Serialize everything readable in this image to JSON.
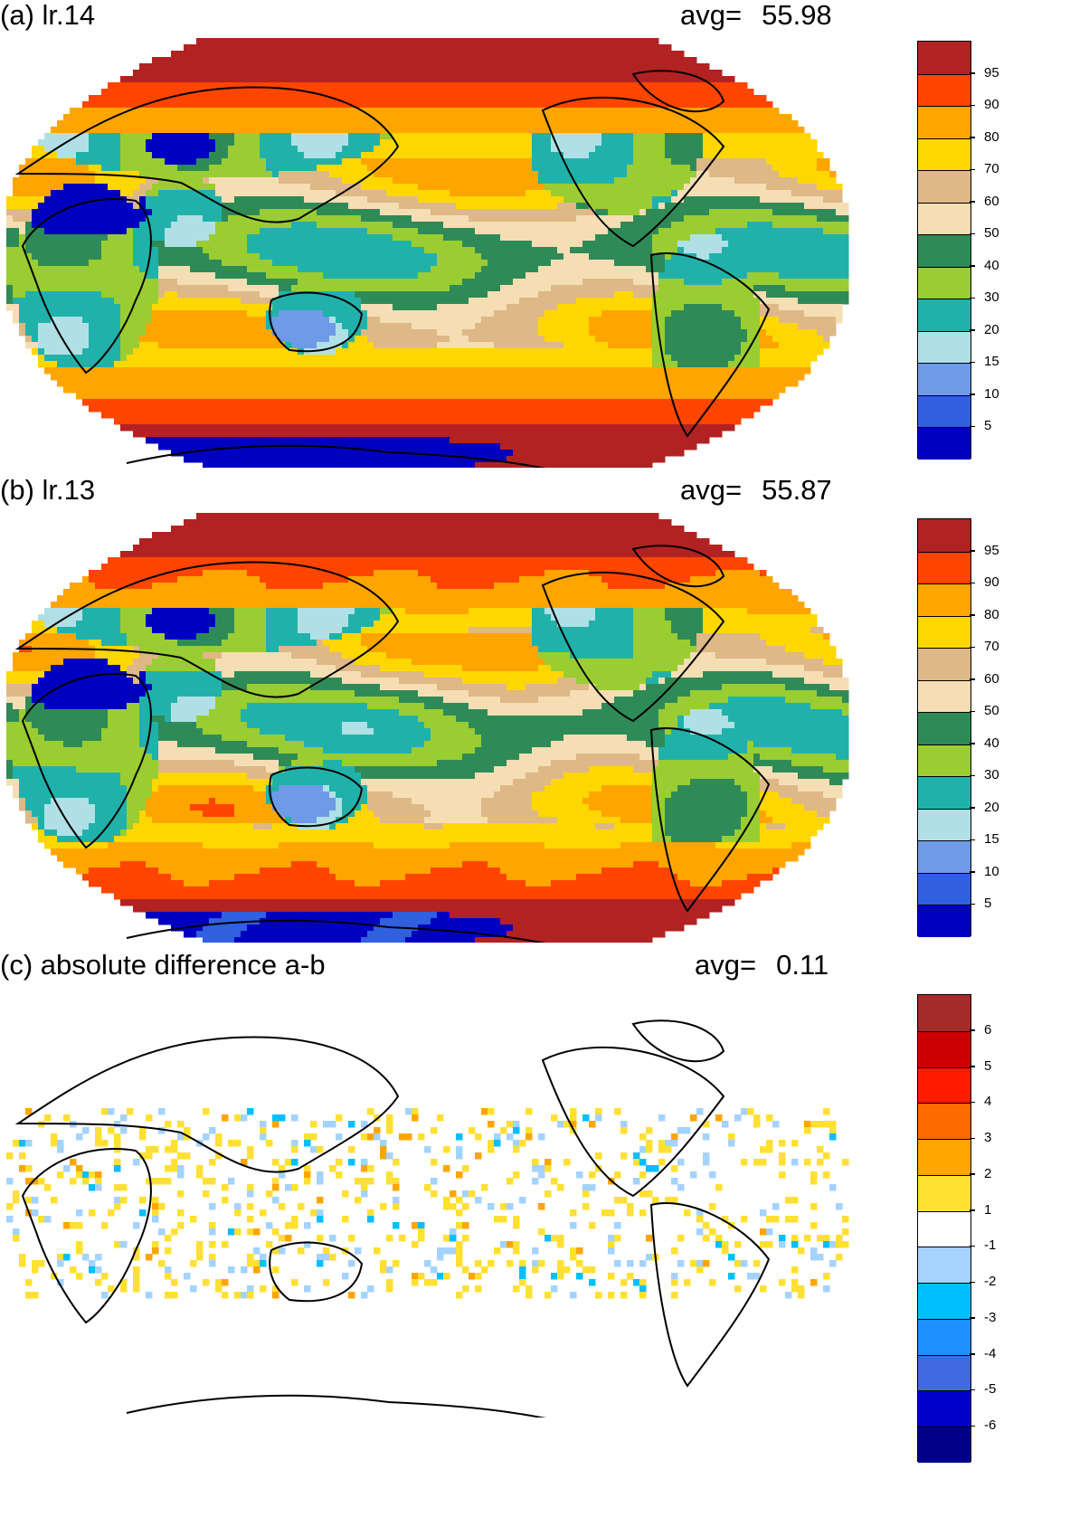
{
  "panels": [
    {
      "title": "(a) lr.14",
      "avg_label": "avg=",
      "avg_value": "55.98",
      "field": "a",
      "colorbar": {
        "colors": [
          "#0000c0",
          "#3060e0",
          "#6f9ae8",
          "#b0e0e6",
          "#20b2aa",
          "#9acd32",
          "#2e8b57",
          "#f5deb3",
          "#deb887",
          "#ffd700",
          "#ffa500",
          "#ff4500",
          "#b22222"
        ],
        "labels": [
          "5",
          "10",
          "15",
          "20",
          "30",
          "40",
          "50",
          "60",
          "70",
          "80",
          "90",
          "95"
        ]
      }
    },
    {
      "title": "(b) lr.13",
      "avg_label": "avg=",
      "avg_value": "55.87",
      "field": "b",
      "colorbar": {
        "colors": [
          "#0000c0",
          "#3060e0",
          "#6f9ae8",
          "#b0e0e6",
          "#20b2aa",
          "#9acd32",
          "#2e8b57",
          "#f5deb3",
          "#deb887",
          "#ffd700",
          "#ffa500",
          "#ff4500",
          "#b22222"
        ],
        "labels": [
          "5",
          "10",
          "15",
          "20",
          "30",
          "40",
          "50",
          "60",
          "70",
          "80",
          "90",
          "95"
        ]
      }
    },
    {
      "title": "(c) absolute difference a-b",
      "avg_label": "avg=",
      "avg_value": "0.11",
      "field": "diff",
      "colorbar": {
        "colors": [
          "#00008b",
          "#0000cd",
          "#4169e1",
          "#1e90ff",
          "#00bfff",
          "#a4d3ff",
          "#ffffff",
          "#ffe033",
          "#ffa500",
          "#ff6a00",
          "#ff1a00",
          "#cc0000",
          "#a52a2a"
        ],
        "labels": [
          "-6",
          "-5",
          "-4",
          "-3",
          "-2",
          "-1",
          "1",
          "2",
          "3",
          "4",
          "5",
          "6"
        ]
      }
    }
  ]
}
